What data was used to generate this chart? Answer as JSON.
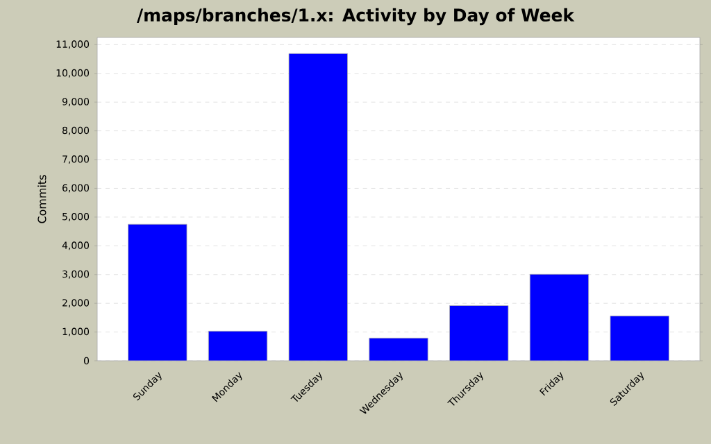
{
  "chart_data": {
    "type": "bar",
    "title": "/maps/branches/1.x: Activity by Day of Week",
    "ylabel": "Commits",
    "categories": [
      "Sunday",
      "Monday",
      "Tuesday",
      "Wednesday",
      "Thursday",
      "Friday",
      "Saturday"
    ],
    "values": [
      4750,
      1030,
      10690,
      790,
      1920,
      3010,
      1560
    ],
    "color": "#0000ff",
    "ylim": [
      0,
      11250
    ],
    "yticks": [
      0,
      {
        "value": 1000,
        "label": "1,000"
      },
      {
        "value": 2000,
        "label": "2,000"
      },
      {
        "value": 3000,
        "label": "3,000"
      },
      {
        "value": 4000,
        "label": "4,000"
      },
      {
        "value": 5000,
        "label": "5,000"
      },
      {
        "value": 6000,
        "label": "6,000"
      },
      {
        "value": 7000,
        "label": "7,000"
      },
      {
        "value": 8000,
        "label": "8,000"
      },
      {
        "value": 9000,
        "label": "9,000"
      },
      {
        "value": 10000,
        "label": "10,000"
      },
      {
        "value": 11000,
        "label": "11,000"
      }
    ],
    "grid": "y"
  }
}
